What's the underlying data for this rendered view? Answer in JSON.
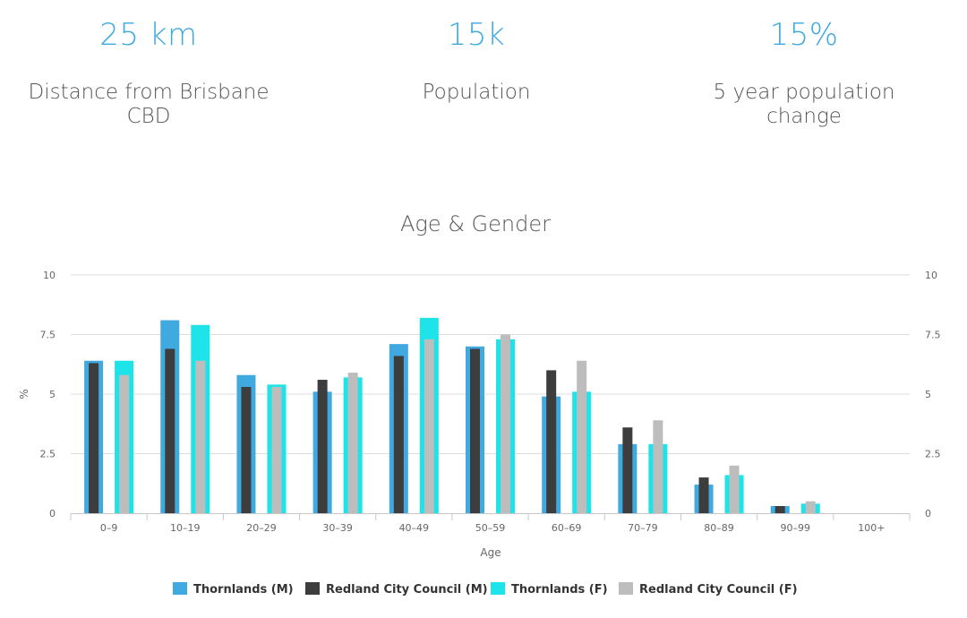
{
  "stats": [
    {
      "value": "25 km",
      "label_line1": "Distance from Brisbane",
      "label_line2": "CBD"
    },
    {
      "value": "15k",
      "label_line1": "Population",
      "label_line2": ""
    },
    {
      "value": "15%",
      "label_line1": "5 year population",
      "label_line2": "change"
    }
  ],
  "colors": {
    "accent": "#3fa9e0",
    "thornlands_m": "#3fa9e0",
    "redland_m": "#3d3d3d",
    "thornlands_f": "#1ee3e8",
    "redland_f": "#bdbdbd"
  },
  "chart_data": {
    "type": "bar",
    "title": "Age & Gender",
    "xlabel": "Age",
    "ylabel": "%",
    "ylim": [
      0,
      10
    ],
    "yticks": [
      "0",
      "2.5",
      "5",
      "7.5",
      "10"
    ],
    "ytick_values": [
      0,
      2.5,
      5,
      7.5,
      10
    ],
    "grid": true,
    "legend_position": "bottom",
    "categories": [
      "0–9",
      "10–19",
      "20–29",
      "30–39",
      "40–49",
      "50–59",
      "60–69",
      "70–79",
      "80–89",
      "90–99",
      "100+"
    ],
    "series": [
      {
        "name": "Thornlands (M)",
        "values": [
          6.4,
          8.1,
          5.8,
          5.1,
          7.1,
          7.0,
          4.9,
          2.9,
          1.2,
          0.3,
          0
        ]
      },
      {
        "name": "Redland City Council (M)",
        "values": [
          6.3,
          6.9,
          5.3,
          5.6,
          6.6,
          6.9,
          6.0,
          3.6,
          1.5,
          0.3,
          0
        ]
      },
      {
        "name": "Thornlands (F)",
        "values": [
          6.4,
          7.9,
          5.4,
          5.7,
          8.2,
          7.3,
          5.1,
          2.9,
          1.6,
          0.4,
          0
        ]
      },
      {
        "name": "Redland City Council (F)",
        "values": [
          5.8,
          6.4,
          5.3,
          5.9,
          7.3,
          7.5,
          6.4,
          3.9,
          2.0,
          0.5,
          0
        ]
      }
    ]
  }
}
